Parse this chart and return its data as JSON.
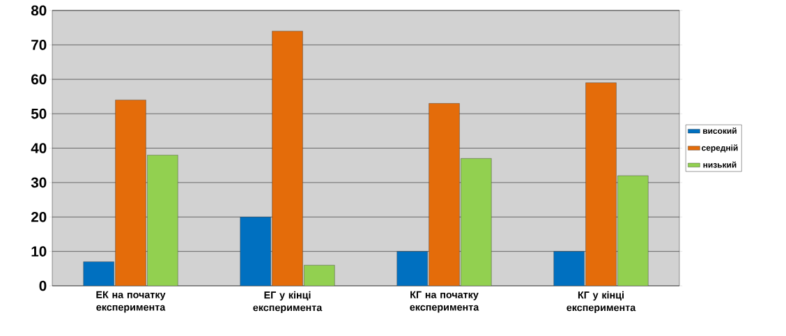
{
  "chart_data": {
    "type": "bar",
    "categories": [
      "ЕК на початку експеримента",
      "ЕГ у кінці експеримента",
      "КГ на початку експеримента",
      "КГ у кінці експеримента"
    ],
    "series": [
      {
        "name": "високий",
        "color": "#0070c0",
        "values": [
          7,
          20,
          10,
          10
        ]
      },
      {
        "name": "середній",
        "color": "#e46c0a",
        "values": [
          54,
          74,
          53,
          59
        ]
      },
      {
        "name": "низький",
        "color": "#92d050",
        "values": [
          38,
          6,
          37,
          32
        ]
      }
    ],
    "ylim": [
      0,
      80
    ],
    "yticks": [
      0,
      10,
      20,
      30,
      40,
      50,
      60,
      70,
      80
    ],
    "grid": "y",
    "legend": "right"
  }
}
